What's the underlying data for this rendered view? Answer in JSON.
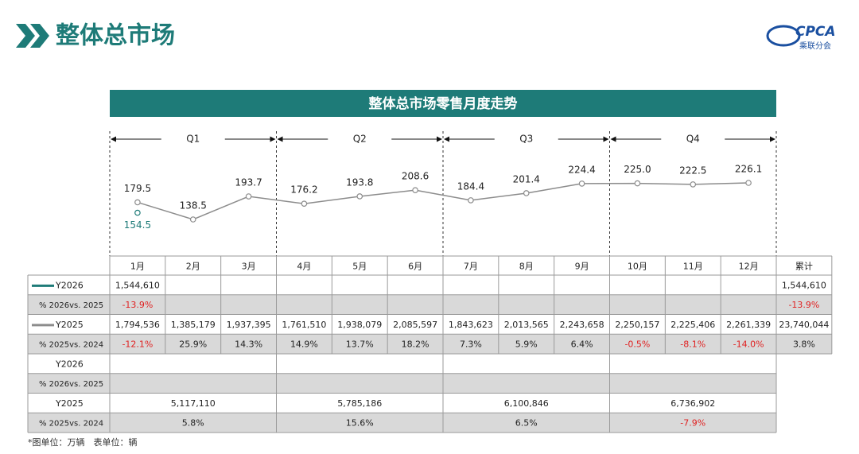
{
  "header": {
    "title": "整体总市场",
    "logo": "CPCA",
    "logo_sub": "乘联分会"
  },
  "chart_data": {
    "type": "line",
    "title": "整体总市场零售月度走势",
    "quarters": [
      "Q1",
      "Q2",
      "Q3",
      "Q4"
    ],
    "categories": [
      "1月",
      "2月",
      "3月",
      "4月",
      "5月",
      "6月",
      "7月",
      "8月",
      "9月",
      "10月",
      "11月",
      "12月"
    ],
    "series": [
      {
        "name": "Y2025",
        "color": "#8c8c8c",
        "values": [
          179.5,
          138.5,
          193.7,
          176.2,
          193.8,
          208.6,
          184.4,
          201.4,
          224.4,
          225.0,
          222.5,
          226.1
        ],
        "value_labels": [
          "179.5",
          "138.5",
          "193.7",
          "176.2",
          "193.8",
          "208.6",
          "184.4",
          "201.4",
          "224.4",
          "225.0",
          "222.5",
          "226.1"
        ]
      },
      {
        "name": "Y2026",
        "color": "#1e7b78",
        "values": [
          154.5,
          null,
          null,
          null,
          null,
          null,
          null,
          null,
          null,
          null,
          null,
          null
        ],
        "value_labels": [
          "154.5",
          null,
          null,
          null,
          null,
          null,
          null,
          null,
          null,
          null,
          null,
          null
        ]
      }
    ]
  },
  "table": {
    "total_header": "累计",
    "monthly_rows": [
      {
        "cells": [
          "1,544,610",
          null,
          null,
          null,
          null,
          null,
          null,
          null,
          null,
          null,
          null,
          null,
          "1,544,610"
        ]
      },
      {
        "label": "% 2026vs. 2025",
        "cells": [
          "-13.9%",
          null,
          null,
          null,
          null,
          null,
          null,
          null,
          null,
          null,
          null,
          null,
          "-13.9%"
        ]
      },
      {
        "cells": [
          "1,794,536",
          "1,385,179",
          "1,937,395",
          "1,761,510",
          "1,938,079",
          "2,085,597",
          "1,843,623",
          "2,013,565",
          "2,243,658",
          "2,250,157",
          "2,225,406",
          "2,261,339",
          "23,740,044"
        ]
      },
      {
        "label": "% 2025vs. 2024",
        "cells": [
          "-12.1%",
          "25.9%",
          "14.3%",
          "14.9%",
          "13.7%",
          "18.2%",
          "7.3%",
          "5.9%",
          "6.4%",
          "-0.5%",
          "-8.1%",
          "-14.0%",
          "3.8%"
        ]
      }
    ],
    "quarterly_rows": [
      {
        "label": "Y2026",
        "cells": [
          null,
          null,
          null,
          null
        ]
      },
      {
        "label": "% 2026vs. 2025",
        "cells": [
          null,
          null,
          null,
          null
        ]
      },
      {
        "label": "Y2025",
        "cells": [
          "5,117,110",
          "5,785,186",
          "6,100,846",
          "6,736,902"
        ]
      },
      {
        "label": "% 2025vs. 2024",
        "cells": [
          "5.8%",
          "15.6%",
          "6.5%",
          "-7.9%"
        ]
      }
    ]
  },
  "footnote": "*图单位：万辆　表单位：辆"
}
